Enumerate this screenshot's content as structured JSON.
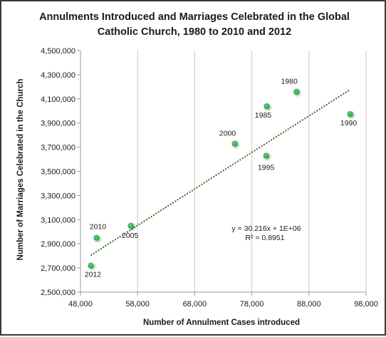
{
  "chart_data": {
    "type": "scatter",
    "title_lines": [
      "Annulments Introduced and Marriages Celebrated in the Global",
      "Catholic Church, 1980 to 2010 and 2012"
    ],
    "xlabel": "Number of Annulment Cases introduced",
    "ylabel": "Number of Marriages  Celebrated in the Church",
    "xlim": [
      48000,
      98000
    ],
    "ylim": [
      2500000,
      4500000
    ],
    "x_ticks": [
      48000,
      58000,
      68000,
      78000,
      88000,
      98000
    ],
    "x_tick_labels": [
      "48,000",
      "58,000",
      "68,000",
      "78,000",
      "88,000",
      "98,000"
    ],
    "y_ticks": [
      2500000,
      2700000,
      2900000,
      3100000,
      3300000,
      3500000,
      3700000,
      3900000,
      4100000,
      4300000,
      4500000
    ],
    "y_tick_labels": [
      "2,500,000",
      "2,700,000",
      "2,900,000",
      "3,100,000",
      "3,300,000",
      "3,500,000",
      "3,700,000",
      "3,900,000",
      "4,100,000",
      "4,300,000",
      "4,500,000"
    ],
    "grid": "vertical",
    "marker_color": "#2ca84a",
    "trendline_color": "#3d6b2a",
    "points": [
      {
        "label": "1980",
        "x": 85800,
        "y": 4160000
      },
      {
        "label": "1985",
        "x": 80600,
        "y": 4040000
      },
      {
        "label": "1990",
        "x": 95200,
        "y": 3975000
      },
      {
        "label": "1995",
        "x": 80500,
        "y": 3630000
      },
      {
        "label": "2000",
        "x": 75000,
        "y": 3730000
      },
      {
        "label": "2005",
        "x": 56800,
        "y": 3050000
      },
      {
        "label": "2010",
        "x": 50800,
        "y": 2950000
      },
      {
        "label": "2012",
        "x": 49800,
        "y": 2720000
      }
    ],
    "trendline": {
      "type": "linear",
      "slope": 30.216,
      "intercept": 1300000,
      "x_start": 49800,
      "x_end": 95200,
      "equation": "y = 30.216x + 1E+06",
      "r_squared": "R² = 0.8951"
    }
  }
}
